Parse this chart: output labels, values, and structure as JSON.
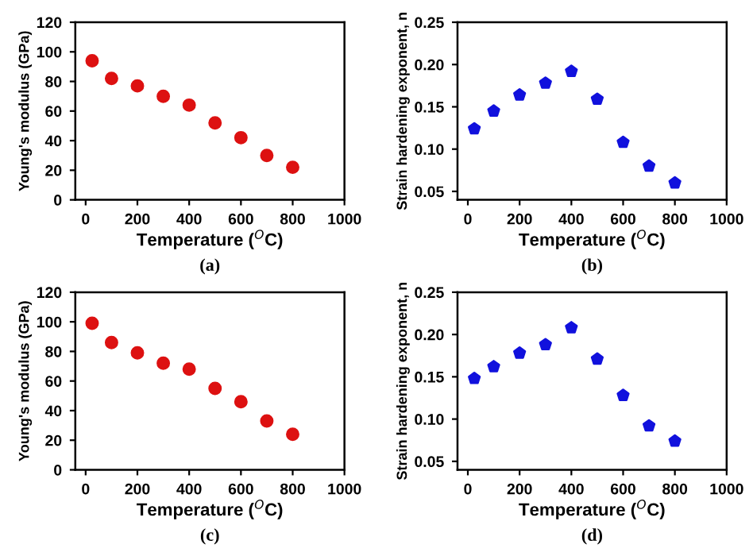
{
  "chart_data": [
    {
      "type": "scatter",
      "xlabel": "Temperature ($^{O}$C)",
      "ylabel": "Young's modulus (GPa)",
      "annotations": [
        "(a)"
      ],
      "x": [
        25,
        100,
        200,
        300,
        400,
        500,
        600,
        700,
        800
      ],
      "series": [
        {
          "color": "#dd1111",
          "values": [
            94,
            82,
            77,
            70,
            64,
            52,
            42,
            30,
            22
          ]
        }
      ],
      "marker": "circle",
      "xlim": [
        -40,
        1000
      ],
      "xticks": [
        0,
        200,
        400,
        600,
        800,
        1000
      ],
      "ylim": [
        0,
        120
      ],
      "yticks": [
        0,
        20,
        40,
        60,
        80,
        100,
        120
      ]
    },
    {
      "type": "scatter",
      "xlabel": "Temperature ($^{O}$C)",
      "ylabel": "Strain hardening exponent, n",
      "annotations": [
        "(b)"
      ],
      "x": [
        25,
        100,
        200,
        300,
        400,
        500,
        600,
        700,
        800
      ],
      "series": [
        {
          "color": "#1111dd",
          "values": [
            0.124,
            0.145,
            0.164,
            0.178,
            0.192,
            0.159,
            0.108,
            0.08,
            0.06
          ]
        }
      ],
      "xlim": [
        -40,
        1000
      ],
      "xticks": [
        0,
        200,
        400,
        600,
        800,
        1000
      ],
      "ylim": [
        0.04,
        0.25
      ],
      "yticks": [
        {
          "value": 0.05,
          "label": "0.05"
        },
        {
          "value": 0.1,
          "label": "0.10"
        },
        {
          "value": 0.15,
          "label": "0.15"
        },
        {
          "value": 0.2,
          "label": "0.20"
        },
        {
          "value": 0.25,
          "label": "0.25"
        }
      ]
    },
    {
      "type": "scatter",
      "xlabel": "Temperature ($^{O}$C)",
      "ylabel": "Young's modulus (GPa)",
      "annotations": [
        "(c)"
      ],
      "x": [
        25,
        100,
        200,
        300,
        400,
        500,
        600,
        700,
        800
      ],
      "series": [
        {
          "color": "#dd1111",
          "values": [
            99,
            86,
            79,
            72,
            68,
            55,
            46,
            33,
            24
          ]
        }
      ],
      "marker": "circle",
      "xlim": [
        -40,
        1000
      ],
      "xticks": [
        0,
        200,
        400,
        600,
        800,
        1000
      ],
      "ylim": [
        0,
        120
      ],
      "yticks": [
        0,
        20,
        40,
        60,
        80,
        100,
        120
      ]
    },
    {
      "type": "scatter",
      "xlabel": "Temperature ($^{O}$C)",
      "ylabel": "Strain hardening exponent, n",
      "annotations": [
        "(d)"
      ],
      "x": [
        25,
        100,
        200,
        300,
        400,
        500,
        600,
        700,
        800
      ],
      "series": [
        {
          "color": "#1111dd",
          "values": [
            0.148,
            0.162,
            0.178,
            0.188,
            0.208,
            0.171,
            0.128,
            0.092,
            0.074
          ]
        }
      ],
      "xlim": [
        -40,
        1000
      ],
      "xticks": [
        0,
        200,
        400,
        600,
        800,
        1000
      ],
      "ylim": [
        0.04,
        0.25
      ],
      "yticks": [
        {
          "value": 0.05,
          "label": "0.05"
        },
        {
          "value": 0.1,
          "label": "0.10"
        },
        {
          "value": 0.15,
          "label": "0.15"
        },
        {
          "value": 0.2,
          "label": "0.20"
        },
        {
          "value": 0.25,
          "label": "0.25"
        }
      ]
    }
  ]
}
